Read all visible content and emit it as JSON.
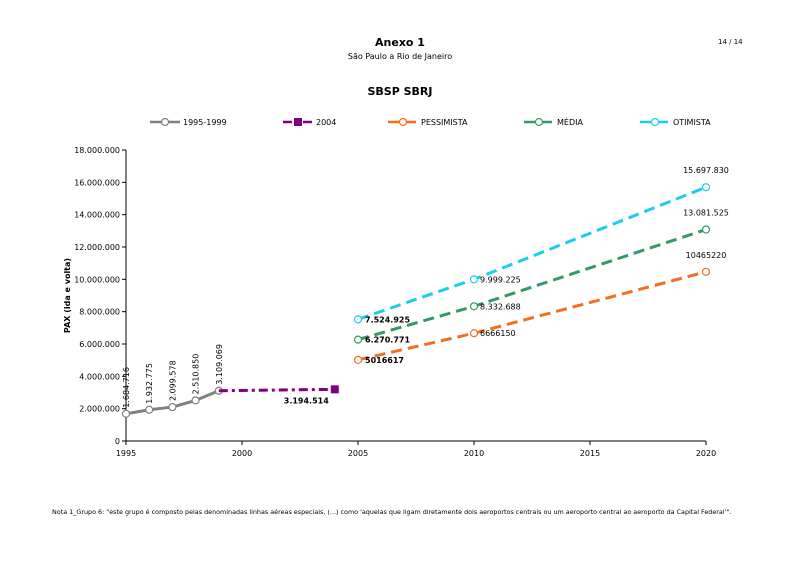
{
  "header": {
    "title": "Anexo 1",
    "subtitle": "São Paulo a Rio de Janeiro",
    "page": "14 / 14"
  },
  "note": "Nota 1_Grupo 6: \"este grupo é composto pelas denominadas linhas aéreas especiais, (...) como 'aquelas que ligam diretamente dois aeroportos centrais ou um aeroporto central ao aeroporto da Capital Federal'\".",
  "chart_data": {
    "type": "line",
    "title": "SBSP SBRJ",
    "xlabel": "",
    "ylabel": "PAX (ida e volta)",
    "xlim": [
      1995,
      2020
    ],
    "ylim": [
      0,
      18000000
    ],
    "x_ticks": [
      1995,
      2000,
      2005,
      2010,
      2015,
      2020
    ],
    "x_tick_labels": [
      "1995",
      "2000",
      "2005",
      "2010",
      "2015",
      "2020"
    ],
    "y_ticks": [
      0,
      2000000,
      4000000,
      6000000,
      8000000,
      10000000,
      12000000,
      14000000,
      16000000,
      18000000
    ],
    "y_tick_labels": [
      "0",
      "2.000.000",
      "4.000.000",
      "6.000.000",
      "8.000.000",
      "10.000.000",
      "12.000.000",
      "14.000.000",
      "16.000.000",
      "18.000.000"
    ],
    "grid": false,
    "legend_position": "top",
    "series": [
      {
        "name": "1995-1999",
        "color": "#808080",
        "style": "solid",
        "marker": "circle",
        "points": [
          [
            1995,
            1684716
          ],
          [
            1996,
            1932775
          ],
          [
            1997,
            2099578
          ],
          [
            1998,
            2510850
          ],
          [
            1999,
            3109069
          ]
        ],
        "labels": [
          "1.684.716",
          "1.932.775",
          "2.099.578",
          "2.510.850",
          "3.109.069"
        ]
      },
      {
        "name": "2004",
        "color": "#800080",
        "style": "dashdot",
        "marker": "square",
        "points": [
          [
            1999,
            3109069
          ],
          [
            2004,
            3194514
          ]
        ],
        "labels": [
          "",
          "3.194.514"
        ]
      },
      {
        "name": "PESSIMISTA",
        "color": "#F07020",
        "style": "dashed",
        "marker": "circle",
        "points": [
          [
            2005,
            5016617
          ],
          [
            2010,
            6666150
          ],
          [
            2020,
            10465220
          ]
        ],
        "labels": [
          "5016617",
          "6666150",
          "10465220"
        ]
      },
      {
        "name": "MÉDIA",
        "color": "#339966",
        "style": "dashed",
        "marker": "circle",
        "points": [
          [
            2005,
            6270771
          ],
          [
            2010,
            8332688
          ],
          [
            2020,
            13081525
          ]
        ],
        "labels": [
          "6.270.771",
          "8.332.688",
          "13.081.525"
        ]
      },
      {
        "name": "OTIMISTA",
        "color": "#1ECCEE",
        "style": "dashed",
        "marker": "circle",
        "points": [
          [
            2005,
            7524925
          ],
          [
            2010,
            9999225
          ],
          [
            2020,
            15697830
          ]
        ],
        "labels": [
          "7.524.925",
          "9.999.225",
          "15.697.830"
        ]
      }
    ]
  }
}
